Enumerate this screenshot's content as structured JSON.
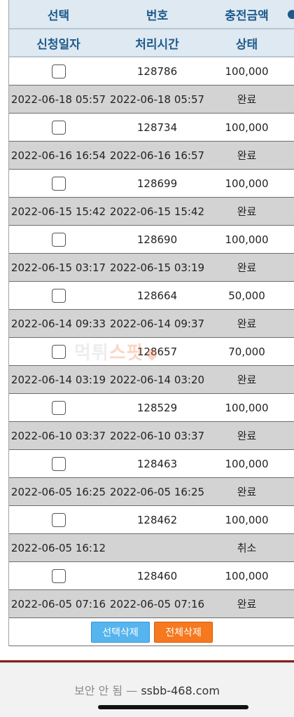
{
  "header": {
    "row1": {
      "select": "선택",
      "number": "번호",
      "amount": "충전금액"
    },
    "row2": {
      "request_date": "신청일자",
      "processed_time": "처리시간",
      "status": "상태"
    }
  },
  "records": [
    {
      "number": "128786",
      "amount": "100,000",
      "request_date": "2022-06-18 05:57",
      "processed_time": "2022-06-18 05:57",
      "status": "완료"
    },
    {
      "number": "128734",
      "amount": "100,000",
      "request_date": "2022-06-16 16:54",
      "processed_time": "2022-06-16 16:57",
      "status": "완료"
    },
    {
      "number": "128699",
      "amount": "100,000",
      "request_date": "2022-06-15 15:42",
      "processed_time": "2022-06-15 15:42",
      "status": "완료"
    },
    {
      "number": "128690",
      "amount": "100,000",
      "request_date": "2022-06-15 03:17",
      "processed_time": "2022-06-15 03:19",
      "status": "완료"
    },
    {
      "number": "128664",
      "amount": "50,000",
      "request_date": "2022-06-14 09:33",
      "processed_time": "2022-06-14 09:37",
      "status": "완료"
    },
    {
      "number": "128657",
      "amount": "70,000",
      "request_date": "2022-06-14 03:19",
      "processed_time": "2022-06-14 03:20",
      "status": "완료"
    },
    {
      "number": "128529",
      "amount": "100,000",
      "request_date": "2022-06-10 03:37",
      "processed_time": "2022-06-10 03:37",
      "status": "완료"
    },
    {
      "number": "128463",
      "amount": "100,000",
      "request_date": "2022-06-05 16:25",
      "processed_time": "2022-06-05 16:25",
      "status": "완료"
    },
    {
      "number": "128462",
      "amount": "100,000",
      "request_date": "2022-06-05 16:12",
      "processed_time": "",
      "status": "취소"
    },
    {
      "number": "128460",
      "amount": "100,000",
      "request_date": "2022-06-05 07:16",
      "processed_time": "2022-06-05 07:16",
      "status": "완료"
    }
  ],
  "buttons": {
    "delete_selected": "선택삭제",
    "delete_all": "전체삭제"
  },
  "browser": {
    "security_label": "보안 안 됨",
    "separator": "—",
    "url": "ssbb-468.com"
  },
  "watermark": {
    "part1": "먹튀",
    "part2": "스팟"
  },
  "colors": {
    "header_text": "#1e5a8c",
    "header_bg": "#dfe9f2",
    "row_gray": "#d3d3d3",
    "btn_blue": "#56b4ef",
    "btn_orange": "#f6781f"
  }
}
